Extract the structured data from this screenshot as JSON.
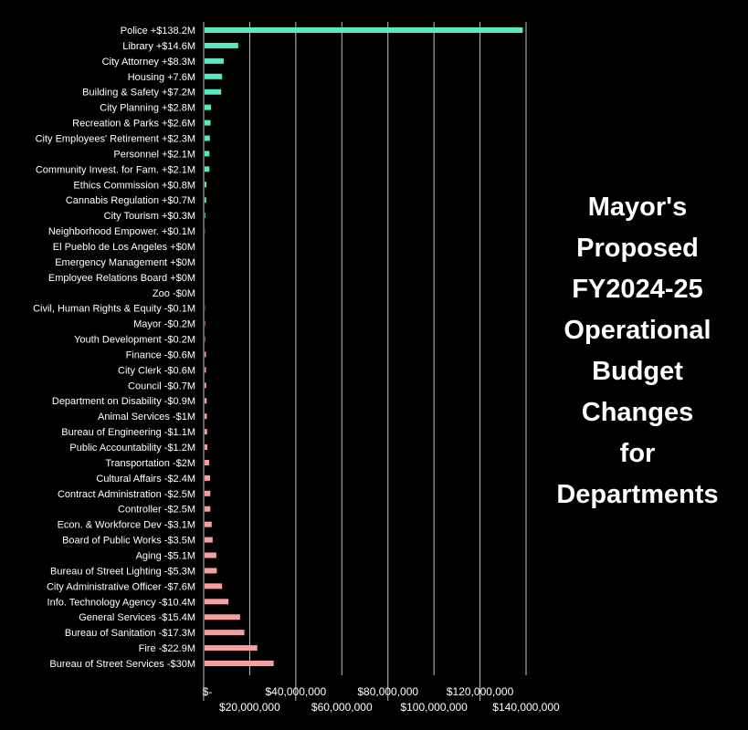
{
  "chart_data": {
    "type": "bar",
    "orientation": "horizontal",
    "title_lines": [
      "Mayor's",
      "Proposed",
      "FY2024-25",
      "Operational",
      "Budget",
      "Changes",
      "for",
      "Departments"
    ],
    "xlabel": "",
    "ylabel": "",
    "xlim": [
      0,
      140000000
    ],
    "grid": true,
    "value_units": "USD millions (bar length = magnitude of change)",
    "colors": {
      "increase": "#5ce8c0",
      "decrease": "#f4a0a0",
      "grid": "#bfbfbf",
      "background": "#000000"
    },
    "x_ticks": [
      "$-",
      "$20,000,000",
      "$40,000,000",
      "$60,000,000",
      "$80,000,000",
      "$100,000,000",
      "$120,000,000",
      "$140,000,000"
    ],
    "categories": [
      "Police +$138.2M",
      "Library +$14.6M",
      "City Attorney +$8.3M",
      "Housing +7.6M",
      "Building & Safety +$7.2M",
      "City Planning +$2.8M",
      "Recreation & Parks +$2.6M",
      "City Employees' Retirement +$2.3M",
      "Personnel +$2.1M",
      "Community Invest. for Fam. +$2.1M",
      "Ethics Commission +$0.8M",
      "Cannabis Regulation +$0.7M",
      "City Tourism +$0.3M",
      "Neighborhood Empower. +$0.1M",
      "El Pueblo de Los Angeles +$0M",
      "Emergency Management +$0M",
      "Employee Relations Board +$0M",
      "Zoo -$0M",
      "Civil, Human Rights & Equity -$0.1M",
      "Mayor -$0.2M",
      "Youth Development -$0.2M",
      "Finance -$0.6M",
      "City Clerk -$0.6M",
      "Council -$0.7M",
      "Department on Disability -$0.9M",
      "Animal Services -$1M",
      "Bureau of Engineering -$1.1M",
      "Public Accountability -$1.2M",
      "Transportation -$2M",
      "Cultural Affairs -$2.4M",
      "Contract Administration -$2.5M",
      "Controller -$2.5M",
      "Econ. & Workforce Dev -$3.1M",
      "Board of Public Works -$3.5M",
      "Aging -$5.1M",
      "Bureau of Street Lighting -$5.3M",
      "City Administrative Officer -$7.6M",
      "Info. Technology Agency -$10.4M",
      "General Services -$15.4M",
      "Bureau of Sanitation -$17.3M",
      "Fire -$22.9M",
      "Bureau of Street Services -$30M"
    ],
    "values": [
      138.2,
      14.6,
      8.3,
      7.6,
      7.2,
      2.8,
      2.6,
      2.3,
      2.1,
      2.1,
      0.8,
      0.7,
      0.3,
      0.1,
      0,
      0,
      0,
      0,
      -0.1,
      -0.2,
      -0.2,
      -0.6,
      -0.6,
      -0.7,
      -0.9,
      -1,
      -1.1,
      -1.2,
      -2,
      -2.4,
      -2.5,
      -2.5,
      -3.1,
      -3.5,
      -5.1,
      -5.3,
      -7.6,
      -10.4,
      -15.4,
      -17.3,
      -22.9,
      -30
    ]
  }
}
